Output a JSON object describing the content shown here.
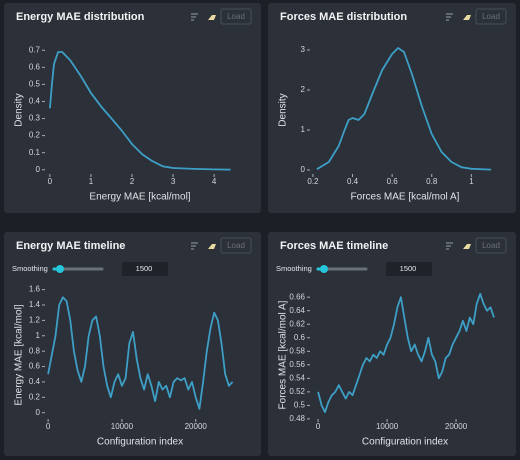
{
  "chart_data": [
    {
      "type": "line",
      "title": "Energy MAE distribution",
      "xlabel": "Energy MAE [kcal/mol]",
      "ylabel": "Density",
      "color": "#3e9fc6",
      "x": [
        0,
        0.05,
        0.1,
        0.2,
        0.3,
        0.5,
        0.75,
        1.0,
        1.25,
        1.5,
        1.75,
        2.0,
        2.25,
        2.5,
        2.75,
        3.0,
        3.5,
        4.0,
        4.4
      ],
      "values": [
        0.36,
        0.5,
        0.62,
        0.69,
        0.69,
        0.64,
        0.55,
        0.45,
        0.37,
        0.3,
        0.23,
        0.15,
        0.09,
        0.05,
        0.02,
        0.01,
        0.005,
        0.002,
        0.001
      ],
      "xlim": [
        -0.24,
        4.63
      ],
      "ylim": [
        -0.06,
        0.76
      ],
      "xticks": [
        0,
        1,
        2,
        3,
        4
      ],
      "yticks": [
        0,
        0.1,
        0.2,
        0.3,
        0.4,
        0.5,
        0.6,
        0.7
      ]
    },
    {
      "type": "line",
      "title": "Forces MAE distribution",
      "xlabel": "Forces MAE [kcal/mol A]",
      "ylabel": "Density",
      "color": "#3e9fc6",
      "x": [
        0.22,
        0.28,
        0.33,
        0.36,
        0.38,
        0.4,
        0.43,
        0.46,
        0.5,
        0.55,
        0.6,
        0.63,
        0.66,
        0.7,
        0.75,
        0.8,
        0.85,
        0.9,
        0.95,
        1.0,
        1.1
      ],
      "values": [
        0.02,
        0.2,
        0.6,
        1.0,
        1.25,
        1.3,
        1.25,
        1.4,
        1.9,
        2.5,
        2.9,
        3.05,
        2.95,
        2.4,
        1.6,
        0.9,
        0.45,
        0.2,
        0.07,
        0.03,
        0.01
      ],
      "xlim": [
        0.16,
        1.17
      ],
      "ylim": [
        -0.25,
        3.25
      ],
      "xticks": [
        0.2,
        0.4,
        0.6,
        0.8,
        1
      ],
      "yticks": [
        0,
        1,
        2,
        3
      ]
    },
    {
      "type": "line",
      "title": "Energy MAE timeline",
      "xlabel": "Configuration index",
      "ylabel": "Energy MAE [kcal/mol]",
      "color": "#3e9fc6",
      "x": [
        0,
        1000,
        1500,
        2000,
        2500,
        3000,
        3500,
        4000,
        4500,
        5000,
        5500,
        6000,
        6500,
        7000,
        7500,
        8000,
        8500,
        9000,
        9500,
        10000,
        10500,
        11000,
        11500,
        12000,
        12500,
        13000,
        13500,
        14000,
        14500,
        15000,
        15500,
        16000,
        16500,
        17000,
        17500,
        18000,
        18500,
        19000,
        19500,
        20000,
        20500,
        21000,
        21500,
        22000,
        22500,
        23000,
        23500,
        24000,
        24500,
        25000
      ],
      "values": [
        0.5,
        1.0,
        1.4,
        1.5,
        1.45,
        1.2,
        0.8,
        0.55,
        0.4,
        0.6,
        1.0,
        1.2,
        1.25,
        1.0,
        0.6,
        0.35,
        0.2,
        0.4,
        0.5,
        0.35,
        0.45,
        0.9,
        1.05,
        0.7,
        0.45,
        0.3,
        0.5,
        0.35,
        0.15,
        0.4,
        0.3,
        0.35,
        0.2,
        0.4,
        0.45,
        0.42,
        0.45,
        0.3,
        0.4,
        0.2,
        0.05,
        0.4,
        0.8,
        1.1,
        1.3,
        1.2,
        0.9,
        0.5,
        0.35,
        0.4
      ],
      "xlim": [
        -1100,
        26000
      ],
      "ylim": [
        -0.16,
        1.66
      ],
      "xticks": [
        0,
        10000,
        20000
      ],
      "yticks": [
        0,
        0.2,
        0.4,
        0.6,
        0.8,
        1,
        1.2,
        1.4,
        1.6
      ]
    },
    {
      "type": "line",
      "title": "Forces MAE timeline",
      "xlabel": "Configuration index",
      "ylabel": "Forces MAE [kcal/mol A]",
      "color": "#3e9fc6",
      "x": [
        0,
        500,
        1000,
        1500,
        2000,
        2500,
        3000,
        3500,
        4000,
        4500,
        5000,
        5500,
        6000,
        6500,
        7000,
        7500,
        8000,
        8500,
        9000,
        9500,
        10000,
        10500,
        11000,
        11500,
        12000,
        12500,
        13000,
        13500,
        14000,
        14500,
        15000,
        15500,
        16000,
        16500,
        17000,
        17500,
        18000,
        18500,
        19000,
        19500,
        20000,
        20500,
        21000,
        21500,
        22000,
        22500,
        23000,
        23500,
        24000,
        24500,
        25000,
        25500
      ],
      "values": [
        0.52,
        0.5,
        0.49,
        0.505,
        0.515,
        0.52,
        0.53,
        0.52,
        0.51,
        0.52,
        0.515,
        0.53,
        0.545,
        0.56,
        0.57,
        0.565,
        0.575,
        0.57,
        0.58,
        0.575,
        0.59,
        0.6,
        0.62,
        0.645,
        0.66,
        0.63,
        0.6,
        0.58,
        0.59,
        0.575,
        0.565,
        0.58,
        0.6,
        0.575,
        0.565,
        0.54,
        0.55,
        0.57,
        0.575,
        0.59,
        0.6,
        0.61,
        0.625,
        0.61,
        0.63,
        0.62,
        0.65,
        0.665,
        0.65,
        0.64,
        0.645,
        0.63
      ],
      "xlim": [
        -1900,
        27100
      ],
      "ylim": [
        0.471,
        0.678
      ],
      "xticks": [
        0,
        10000,
        20000
      ],
      "yticks": [
        0.48,
        0.5,
        0.52,
        0.54,
        0.56,
        0.58,
        0.6,
        0.62,
        0.64,
        0.66
      ]
    }
  ],
  "panels": [
    {
      "button": "Load"
    },
    {
      "button": "Load"
    },
    {
      "button": "Load",
      "smoothing_label": "Smoothing",
      "smoothing": 1500
    },
    {
      "button": "Load",
      "smoothing_label": "Smoothing",
      "smoothing": 1500
    }
  ]
}
